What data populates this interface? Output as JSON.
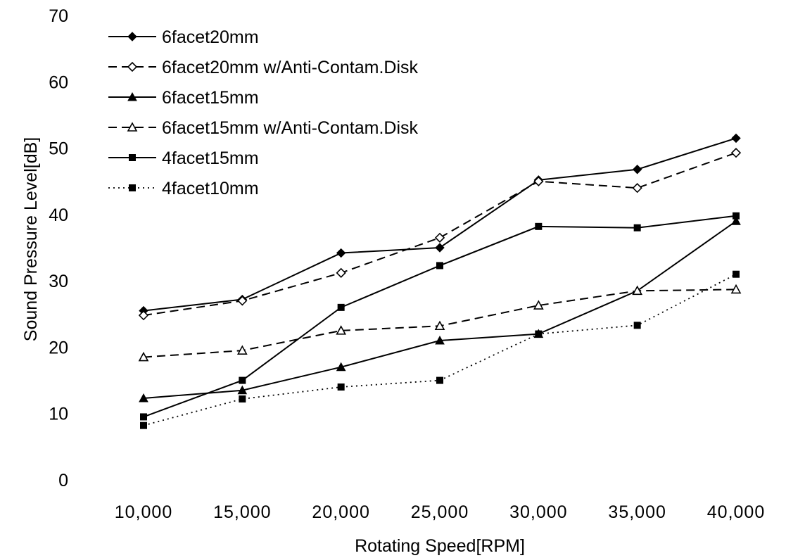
{
  "chart_data": {
    "type": "line",
    "title": "",
    "xlabel": "Rotating Speed[RPM]",
    "ylabel": "Sound Pressure Level[dB]",
    "categories": [
      "10,000",
      "15,000",
      "20,000",
      "25,000",
      "30,000",
      "35,000",
      "40,000"
    ],
    "x": [
      10000,
      15000,
      20000,
      25000,
      30000,
      35000,
      40000
    ],
    "ylim": [
      0,
      70
    ],
    "yticks": [
      "0",
      "10",
      "20",
      "30",
      "40",
      "50",
      "60",
      "70"
    ],
    "grid": false,
    "legend_position": "top-left",
    "series": [
      {
        "name": "6facet20mm",
        "values": [
          25.5,
          27.2,
          34.2,
          35.0,
          45.2,
          46.8,
          51.5
        ],
        "line": "solid",
        "marker": "diamond-filled",
        "color": "#000000"
      },
      {
        "name": "6facet20mm w/Anti-Contam.Disk",
        "values": [
          24.8,
          27.0,
          31.2,
          36.5,
          45.0,
          44.0,
          49.3
        ],
        "line": "dashed",
        "marker": "diamond-open",
        "color": "#000000"
      },
      {
        "name": "6facet15mm",
        "values": [
          12.3,
          13.5,
          17.0,
          21.0,
          22.0,
          28.5,
          39.0
        ],
        "line": "solid",
        "marker": "triangle-filled",
        "color": "#000000"
      },
      {
        "name": "6facet15mm w/Anti-Contam.Disk",
        "values": [
          18.5,
          19.5,
          22.5,
          23.2,
          26.3,
          28.5,
          28.7
        ],
        "line": "dashed",
        "marker": "triangle-open",
        "color": "#000000"
      },
      {
        "name": "4facet15mm",
        "values": [
          9.5,
          15.0,
          26.0,
          32.3,
          38.2,
          38.0,
          39.8
        ],
        "line": "solid",
        "marker": "square-filled",
        "color": "#000000"
      },
      {
        "name": "4facet10mm",
        "values": [
          8.2,
          12.2,
          14.0,
          15.0,
          22.0,
          23.3,
          31.0
        ],
        "line": "dotted",
        "marker": "square-filled",
        "color": "#000000"
      }
    ]
  }
}
